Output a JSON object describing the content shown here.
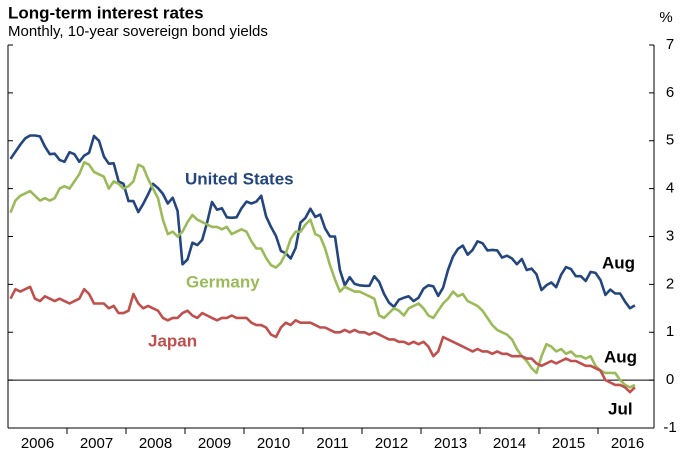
{
  "chart_data": {
    "type": "line",
    "title": "Long-term interest rates",
    "subtitle": "Monthly, 10-year sovereign bond yields",
    "y_unit": "%",
    "categories": [
      null,
      null,
      null,
      null,
      null,
      "2006",
      null,
      null,
      null,
      null,
      null,
      null,
      null,
      null,
      null,
      null,
      null,
      "2007",
      null,
      null,
      null,
      null,
      null,
      null,
      null,
      null,
      null,
      null,
      null,
      "2008",
      null,
      null,
      null,
      null,
      null,
      null,
      null,
      null,
      null,
      null,
      null,
      "2009",
      null,
      null,
      null,
      null,
      null,
      null,
      null,
      null,
      null,
      null,
      null,
      "2010",
      null,
      null,
      null,
      null,
      null,
      null,
      null,
      null,
      null,
      null,
      null,
      "2011",
      null,
      null,
      null,
      null,
      null,
      null,
      null,
      null,
      null,
      null,
      null,
      "2012",
      null,
      null,
      null,
      null,
      null,
      null,
      null,
      null,
      null,
      null,
      null,
      "2013",
      null,
      null,
      null,
      null,
      null,
      null,
      null,
      null,
      null,
      null,
      null,
      "2014",
      null,
      null,
      null,
      null,
      null,
      null,
      null,
      null,
      null,
      null,
      null,
      "2015",
      null,
      null,
      null,
      null,
      null,
      null,
      null,
      null,
      null,
      null,
      null,
      "2016",
      null,
      null
    ],
    "series": [
      {
        "name": "United States",
        "color": "#24467e",
        "values": [
          4.62,
          4.77,
          4.92,
          5.05,
          5.11,
          5.11,
          5.09,
          4.88,
          4.72,
          4.73,
          4.6,
          4.56,
          4.76,
          4.72,
          4.56,
          4.69,
          4.75,
          5.1,
          5.0,
          4.67,
          4.52,
          4.53,
          4.15,
          4.1,
          3.74,
          3.74,
          3.51,
          3.68,
          3.88,
          4.1,
          4.01,
          3.89,
          3.69,
          3.81,
          3.53,
          2.42,
          2.52,
          2.87,
          2.82,
          2.93,
          3.29,
          3.72,
          3.56,
          3.59,
          3.4,
          3.39,
          3.4,
          3.59,
          3.73,
          3.69,
          3.73,
          3.85,
          3.42,
          3.2,
          3.01,
          2.7,
          2.65,
          2.54,
          2.76,
          3.29,
          3.39,
          3.58,
          3.41,
          3.46,
          3.17,
          3.0,
          3.0,
          2.3,
          1.98,
          2.15,
          2.01,
          1.98,
          1.97,
          1.97,
          2.17,
          2.05,
          1.8,
          1.62,
          1.53,
          1.68,
          1.72,
          1.75,
          1.65,
          1.72,
          1.91,
          1.98,
          1.96,
          1.76,
          1.93,
          2.3,
          2.58,
          2.74,
          2.81,
          2.62,
          2.72,
          2.9,
          2.86,
          2.71,
          2.72,
          2.71,
          2.56,
          2.6,
          2.54,
          2.42,
          2.53,
          2.3,
          2.33,
          2.21,
          1.88,
          1.98,
          2.04,
          1.94,
          2.2,
          2.36,
          2.32,
          2.17,
          2.17,
          2.07,
          2.26,
          2.24,
          2.09,
          1.78,
          1.89,
          1.81,
          1.81,
          1.64,
          1.5,
          1.56
        ]
      },
      {
        "name": "Germany",
        "color": "#9bbb59",
        "values": [
          3.5,
          3.75,
          3.85,
          3.9,
          3.95,
          3.85,
          3.75,
          3.8,
          3.75,
          3.8,
          4.0,
          4.05,
          4.0,
          4.15,
          4.3,
          4.55,
          4.5,
          4.35,
          4.3,
          4.25,
          4.0,
          4.15,
          4.1,
          4.0,
          4.05,
          4.15,
          4.5,
          4.45,
          4.2,
          4.0,
          3.8,
          3.35,
          3.05,
          3.1,
          3.0,
          3.1,
          3.3,
          3.45,
          3.35,
          3.3,
          3.25,
          3.2,
          3.2,
          3.15,
          3.2,
          3.05,
          3.1,
          3.15,
          3.1,
          2.9,
          2.75,
          2.75,
          2.55,
          2.4,
          2.35,
          2.45,
          2.65,
          2.95,
          3.1,
          3.1,
          3.25,
          3.35,
          3.05,
          3.0,
          2.75,
          2.4,
          2.1,
          1.85,
          1.95,
          1.9,
          1.85,
          1.85,
          1.8,
          1.75,
          1.7,
          1.35,
          1.3,
          1.4,
          1.5,
          1.45,
          1.35,
          1.5,
          1.55,
          1.6,
          1.5,
          1.35,
          1.3,
          1.45,
          1.6,
          1.7,
          1.85,
          1.75,
          1.8,
          1.65,
          1.6,
          1.55,
          1.45,
          1.3,
          1.15,
          1.05,
          1.0,
          0.95,
          0.85,
          0.65,
          0.5,
          0.4,
          0.25,
          0.15,
          0.5,
          0.75,
          0.7,
          0.6,
          0.65,
          0.55,
          0.6,
          0.5,
          0.5,
          0.45,
          0.5,
          0.3,
          0.2,
          0.15,
          0.15,
          0.15,
          0.0,
          -0.1,
          -0.15,
          -0.1
        ]
      },
      {
        "name": "Japan",
        "color": "#c0504d",
        "values": [
          1.7,
          1.9,
          1.85,
          1.9,
          1.95,
          1.7,
          1.65,
          1.75,
          1.7,
          1.65,
          1.7,
          1.65,
          1.6,
          1.65,
          1.7,
          1.9,
          1.8,
          1.6,
          1.6,
          1.6,
          1.5,
          1.55,
          1.4,
          1.4,
          1.45,
          1.8,
          1.6,
          1.5,
          1.55,
          1.5,
          1.45,
          1.3,
          1.25,
          1.3,
          1.3,
          1.4,
          1.45,
          1.35,
          1.3,
          1.4,
          1.35,
          1.3,
          1.25,
          1.3,
          1.3,
          1.35,
          1.3,
          1.3,
          1.3,
          1.2,
          1.15,
          1.15,
          1.1,
          0.95,
          0.9,
          1.1,
          1.2,
          1.15,
          1.25,
          1.2,
          1.2,
          1.2,
          1.15,
          1.1,
          1.1,
          1.05,
          1.0,
          1.0,
          1.05,
          1.0,
          1.05,
          1.0,
          1.0,
          0.95,
          1.0,
          0.95,
          0.9,
          0.85,
          0.85,
          0.8,
          0.8,
          0.75,
          0.8,
          0.75,
          0.8,
          0.7,
          0.5,
          0.6,
          0.9,
          0.85,
          0.8,
          0.75,
          0.7,
          0.65,
          0.6,
          0.65,
          0.6,
          0.6,
          0.55,
          0.6,
          0.55,
          0.55,
          0.5,
          0.5,
          0.5,
          0.45,
          0.45,
          0.35,
          0.3,
          0.35,
          0.4,
          0.35,
          0.4,
          0.45,
          0.4,
          0.4,
          0.35,
          0.3,
          0.3,
          0.25,
          0.2,
          0.0,
          -0.05,
          -0.1,
          -0.1,
          -0.15,
          -0.25,
          -0.15
        ]
      }
    ],
    "annotations": [
      "Aug",
      "Aug",
      "Jul"
    ],
    "ylim": [
      -1,
      7
    ],
    "yticks": [
      -1,
      0,
      1,
      2,
      3,
      4,
      5,
      6,
      7
    ]
  }
}
